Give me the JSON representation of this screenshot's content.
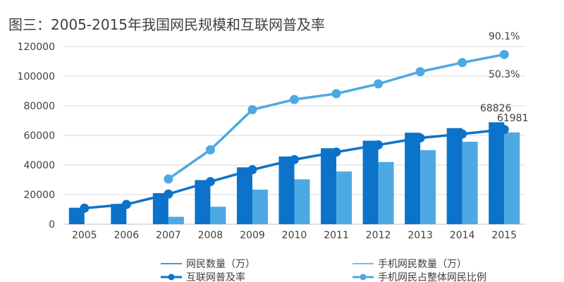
{
  "chart_data": {
    "type": "bar",
    "title": "图三：2005-2015年我国网民规模和互联网普及率",
    "xlabel": "",
    "ylabel": "",
    "categories": [
      "2005",
      "2006",
      "2007",
      "2008",
      "2009",
      "2010",
      "2011",
      "2012",
      "2013",
      "2014",
      "2015"
    ],
    "ylim": [
      0,
      120000
    ],
    "yticks": [
      0,
      20000,
      40000,
      60000,
      80000,
      100000,
      120000
    ],
    "grid": true,
    "legend_position": "bottom",
    "colors": {
      "dark": "#0b73c9",
      "light": "#4da9e3"
    },
    "series": [
      {
        "name": "网民数量（万）",
        "type": "bar",
        "values": [
          11100,
          13700,
          21000,
          29800,
          38400,
          45700,
          51300,
          56400,
          61800,
          64900,
          68826
        ]
      },
      {
        "name": "手机网民数量（万）",
        "type": "bar",
        "values": [
          null,
          null,
          5000,
          11800,
          23300,
          30300,
          35600,
          42000,
          50000,
          55700,
          61981
        ]
      },
      {
        "name": "互联网普及率",
        "type": "line",
        "values": [
          8.5,
          10.5,
          16.0,
          22.6,
          28.9,
          34.3,
          38.3,
          42.1,
          45.8,
          47.9,
          50.3
        ]
      },
      {
        "name": "手机网民占整体网民比例",
        "type": "line",
        "values": [
          null,
          null,
          24.0,
          39.5,
          60.8,
          66.2,
          69.3,
          74.5,
          81.0,
          85.8,
          90.1
        ]
      }
    ],
    "annotations": [
      "90.1%",
      "50.3%",
      "68826",
      "61981"
    ]
  }
}
